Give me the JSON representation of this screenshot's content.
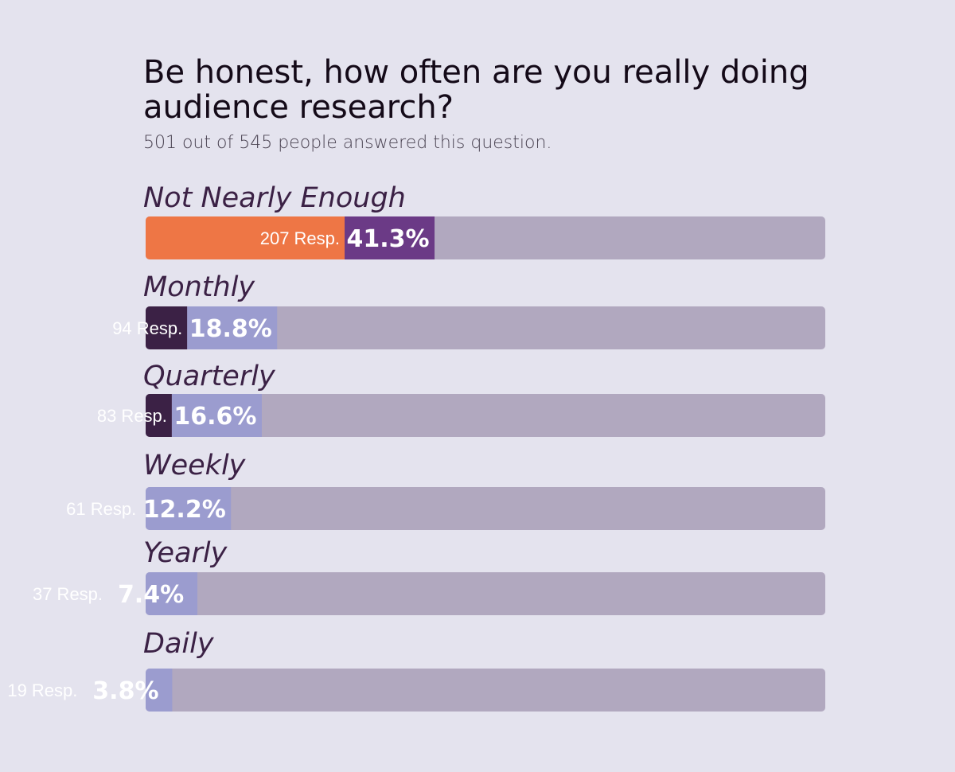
{
  "chart_data": {
    "type": "bar",
    "orientation": "horizontal",
    "title": "Be honest, how often are you really doing audience research?",
    "title_lines": [
      "Be honest, how often are you really doing",
      "audience research?"
    ],
    "subtitle": "501 out of 545 people answered this question.",
    "categories": [
      "Not Nearly Enough",
      "Monthly",
      "Quarterly",
      "Weekly",
      "Yearly",
      "Daily"
    ],
    "values": [
      41.3,
      18.8,
      16.6,
      12.2,
      7.4,
      3.8
    ],
    "responses": [
      207,
      94,
      83,
      61,
      37,
      19
    ],
    "response_labels": [
      "207 Resp.",
      "94 Resp.",
      "83 Resp.",
      "61 Resp.",
      "37 Resp.",
      "19 Resp."
    ],
    "percent_labels": [
      "41.3%",
      "18.8%",
      "16.6%",
      "12.2%",
      "7.4%",
      "3.8%"
    ],
    "highlight_index": 0,
    "xlim": [
      0,
      100
    ],
    "grid": false,
    "legend": "none"
  },
  "colors": {
    "background": "#e4e3ee",
    "track": "#b1a8bf",
    "title": "#140a18",
    "subtitle": "#4a4352",
    "category_label": "#3b2145",
    "highlight_count_fill": "#ee7645",
    "highlight_pct_fill": "#6b3a86",
    "count_fill": "#3b2145",
    "pct_fill": "#9b9ccf",
    "label_text": "#ffffff"
  }
}
